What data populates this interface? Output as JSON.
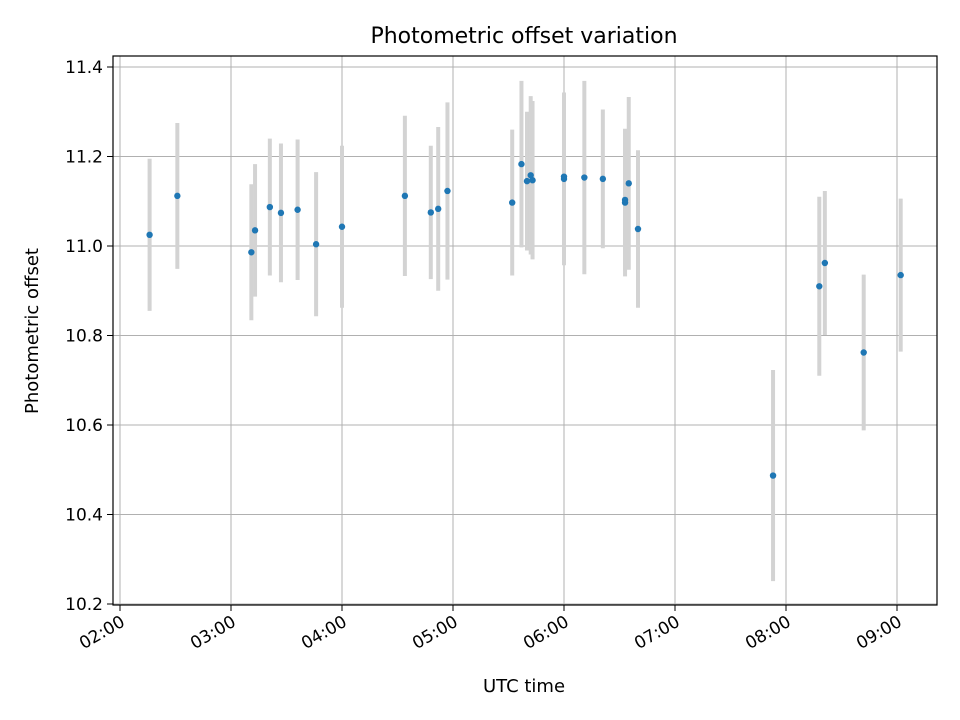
{
  "chart_data": {
    "type": "scatter",
    "title": "Photometric offset variation",
    "xlabel": "UTC time",
    "ylabel": "Photometric offset",
    "xlim": [
      "02:00",
      "09:00"
    ],
    "ylim": [
      10.2,
      11.4
    ],
    "x_ticks": [
      "02:00",
      "03:00",
      "04:00",
      "05:00",
      "06:00",
      "07:00",
      "08:00",
      "09:00"
    ],
    "y_ticks": [
      "10.2",
      "10.4",
      "10.6",
      "10.8",
      "11.0",
      "11.2",
      "11.4"
    ],
    "grid": true,
    "points": [
      {
        "t": "02:16",
        "y": 11.025,
        "err": 0.17
      },
      {
        "t": "02:31",
        "y": 11.112,
        "err": 0.163
      },
      {
        "t": "03:11",
        "y": 10.986,
        "err": 0.152
      },
      {
        "t": "03:13",
        "y": 11.035,
        "err": 0.148
      },
      {
        "t": "03:21",
        "y": 11.087,
        "err": 0.153
      },
      {
        "t": "03:27",
        "y": 11.074,
        "err": 0.155
      },
      {
        "t": "03:36",
        "y": 11.081,
        "err": 0.157
      },
      {
        "t": "03:46",
        "y": 11.004,
        "err": 0.161
      },
      {
        "t": "04:00",
        "y": 11.043,
        "err": 0.181
      },
      {
        "t": "04:34",
        "y": 11.112,
        "err": 0.179
      },
      {
        "t": "04:48",
        "y": 11.075,
        "err": 0.149
      },
      {
        "t": "04:52",
        "y": 11.083,
        "err": 0.183
      },
      {
        "t": "04:57",
        "y": 11.123,
        "err": 0.198
      },
      {
        "t": "05:32",
        "y": 11.097,
        "err": 0.163
      },
      {
        "t": "05:37",
        "y": 11.183,
        "err": 0.186
      },
      {
        "t": "05:40",
        "y": 11.145,
        "err": 0.155
      },
      {
        "t": "05:42",
        "y": 11.158,
        "err": 0.177
      },
      {
        "t": "05:43",
        "y": 11.147,
        "err": 0.177
      },
      {
        "t": "06:00",
        "y": 11.15,
        "err": 0.193
      },
      {
        "t": "06:00",
        "y": 11.155,
        "err": 0.14
      },
      {
        "t": "06:11",
        "y": 11.153,
        "err": 0.216
      },
      {
        "t": "06:21",
        "y": 11.15,
        "err": 0.155
      },
      {
        "t": "06:33",
        "y": 11.097,
        "err": 0.165
      },
      {
        "t": "06:33",
        "y": 11.103,
        "err": 0.158
      },
      {
        "t": "06:35",
        "y": 11.14,
        "err": 0.193
      },
      {
        "t": "06:40",
        "y": 11.038,
        "err": 0.176
      },
      {
        "t": "07:53",
        "y": 10.487,
        "err": 0.236
      },
      {
        "t": "08:18",
        "y": 10.91,
        "err": 0.2
      },
      {
        "t": "08:21",
        "y": 10.962,
        "err": 0.161
      },
      {
        "t": "08:42",
        "y": 10.762,
        "err": 0.174
      },
      {
        "t": "09:02",
        "y": 10.935,
        "err": 0.171
      }
    ],
    "marker_color": "#1f77b4",
    "errorbar_color": "#d3d3d3"
  }
}
